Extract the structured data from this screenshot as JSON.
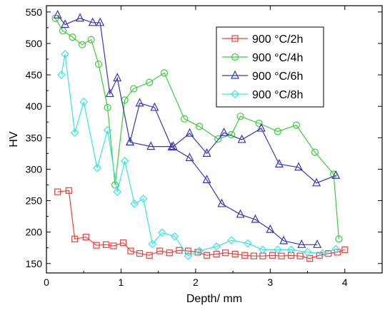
{
  "chart_data": {
    "type": "line",
    "title": "",
    "xlabel": "Depth/ mm",
    "ylabel": "HV",
    "xlim": [
      0,
      4.5
    ],
    "ylim": [
      135,
      560
    ],
    "xticks": [
      0,
      1,
      2,
      3,
      4
    ],
    "yticks": [
      150,
      200,
      250,
      300,
      350,
      400,
      450,
      500,
      550
    ],
    "grid": false,
    "legend_position": "top-right",
    "series": [
      {
        "name": "900 °C/2h",
        "color": "#e8413f",
        "marker": "square",
        "x": [
          0.15,
          0.3,
          0.38,
          0.53,
          0.67,
          0.8,
          0.9,
          1.03,
          1.13,
          1.25,
          1.38,
          1.52,
          1.65,
          1.78,
          1.9,
          2.03,
          2.15,
          2.28,
          2.4,
          2.53,
          2.66,
          2.78,
          2.9,
          3.03,
          3.15,
          3.28,
          3.4,
          3.53,
          3.66,
          3.78,
          3.9,
          4.0
        ],
        "y": [
          264,
          266,
          189,
          192,
          179,
          180,
          178,
          183,
          170,
          166,
          163,
          170,
          167,
          171,
          170,
          168,
          163,
          165,
          167,
          165,
          163,
          162,
          162,
          163,
          162,
          163,
          162,
          158,
          163,
          166,
          168,
          172
        ]
      },
      {
        "name": "900 °C/4h",
        "color": "#3dcc3a",
        "marker": "circle",
        "x": [
          0.12,
          0.22,
          0.35,
          0.48,
          0.6,
          0.7,
          0.82,
          0.92,
          1.05,
          1.17,
          1.38,
          1.58,
          1.85,
          2.05,
          2.3,
          2.48,
          2.6,
          2.85,
          3.1,
          3.35,
          3.6,
          3.85,
          3.92
        ],
        "y": [
          540,
          520,
          510,
          498,
          506,
          467,
          398,
          275,
          410,
          428,
          438,
          453,
          380,
          368,
          348,
          355,
          384,
          373,
          360,
          370,
          327,
          292,
          189
        ]
      },
      {
        "name": "900 °C/6h",
        "color": "#3737b5",
        "marker": "triangle",
        "x": [
          0.15,
          0.25,
          0.45,
          0.62,
          0.72,
          0.85,
          0.95,
          1.12,
          1.25,
          1.45,
          1.68,
          1.92,
          2.15,
          2.35,
          2.6,
          2.8,
          3.0,
          3.18,
          3.42,
          3.63,
          2.9,
          3.2,
          3.45,
          3.65,
          3.88
        ],
        "y": [
          545,
          530,
          540,
          533,
          533,
          420,
          445,
          343,
          405,
          398,
          335,
          318,
          283,
          245,
          228,
          220,
          204,
          186,
          180,
          180,
          365,
          308,
          303,
          278,
          290
        ],
        "segments": [
          {
            "x": [
              0.15,
              0.25,
              0.45,
              0.62,
              0.72,
              0.85,
              0.95,
              1.12,
              1.25,
              1.45,
              1.68,
              1.92,
              2.15,
              2.35,
              2.6,
              2.8,
              3.0,
              3.18,
              3.42,
              3.63
            ],
            "y": [
              545,
              530,
              540,
              533,
              533,
              420,
              445,
              343,
              405,
              398,
              335,
              318,
              283,
              245,
              228,
              220,
              204,
              186,
              180,
              180
            ]
          },
          {
            "x": [
              1.12,
              1.4,
              1.7,
              1.92,
              2.15,
              2.38,
              2.62,
              2.88,
              3.12,
              3.38,
              3.62,
              3.88
            ],
            "y": [
              343,
              336,
              336,
              357,
              325,
              358,
              347,
              365,
              308,
              303,
              278,
              290
            ]
          }
        ]
      },
      {
        "name": "900 °C/8h",
        "color": "#33e6e6",
        "marker": "diamond",
        "x": [
          0.2,
          0.25,
          0.38,
          0.5,
          0.68,
          0.82,
          0.95,
          1.05,
          1.18,
          1.3,
          1.42,
          1.55,
          1.72,
          1.9,
          2.05,
          2.28,
          2.48,
          2.7,
          2.9,
          3.1,
          3.28,
          3.5,
          3.7,
          3.88
        ],
        "y": [
          450,
          483,
          358,
          407,
          302,
          362,
          264,
          313,
          245,
          253,
          181,
          199,
          193,
          162,
          170,
          177,
          187,
          182,
          172,
          172,
          172,
          168,
          166,
          173
        ]
      }
    ]
  }
}
